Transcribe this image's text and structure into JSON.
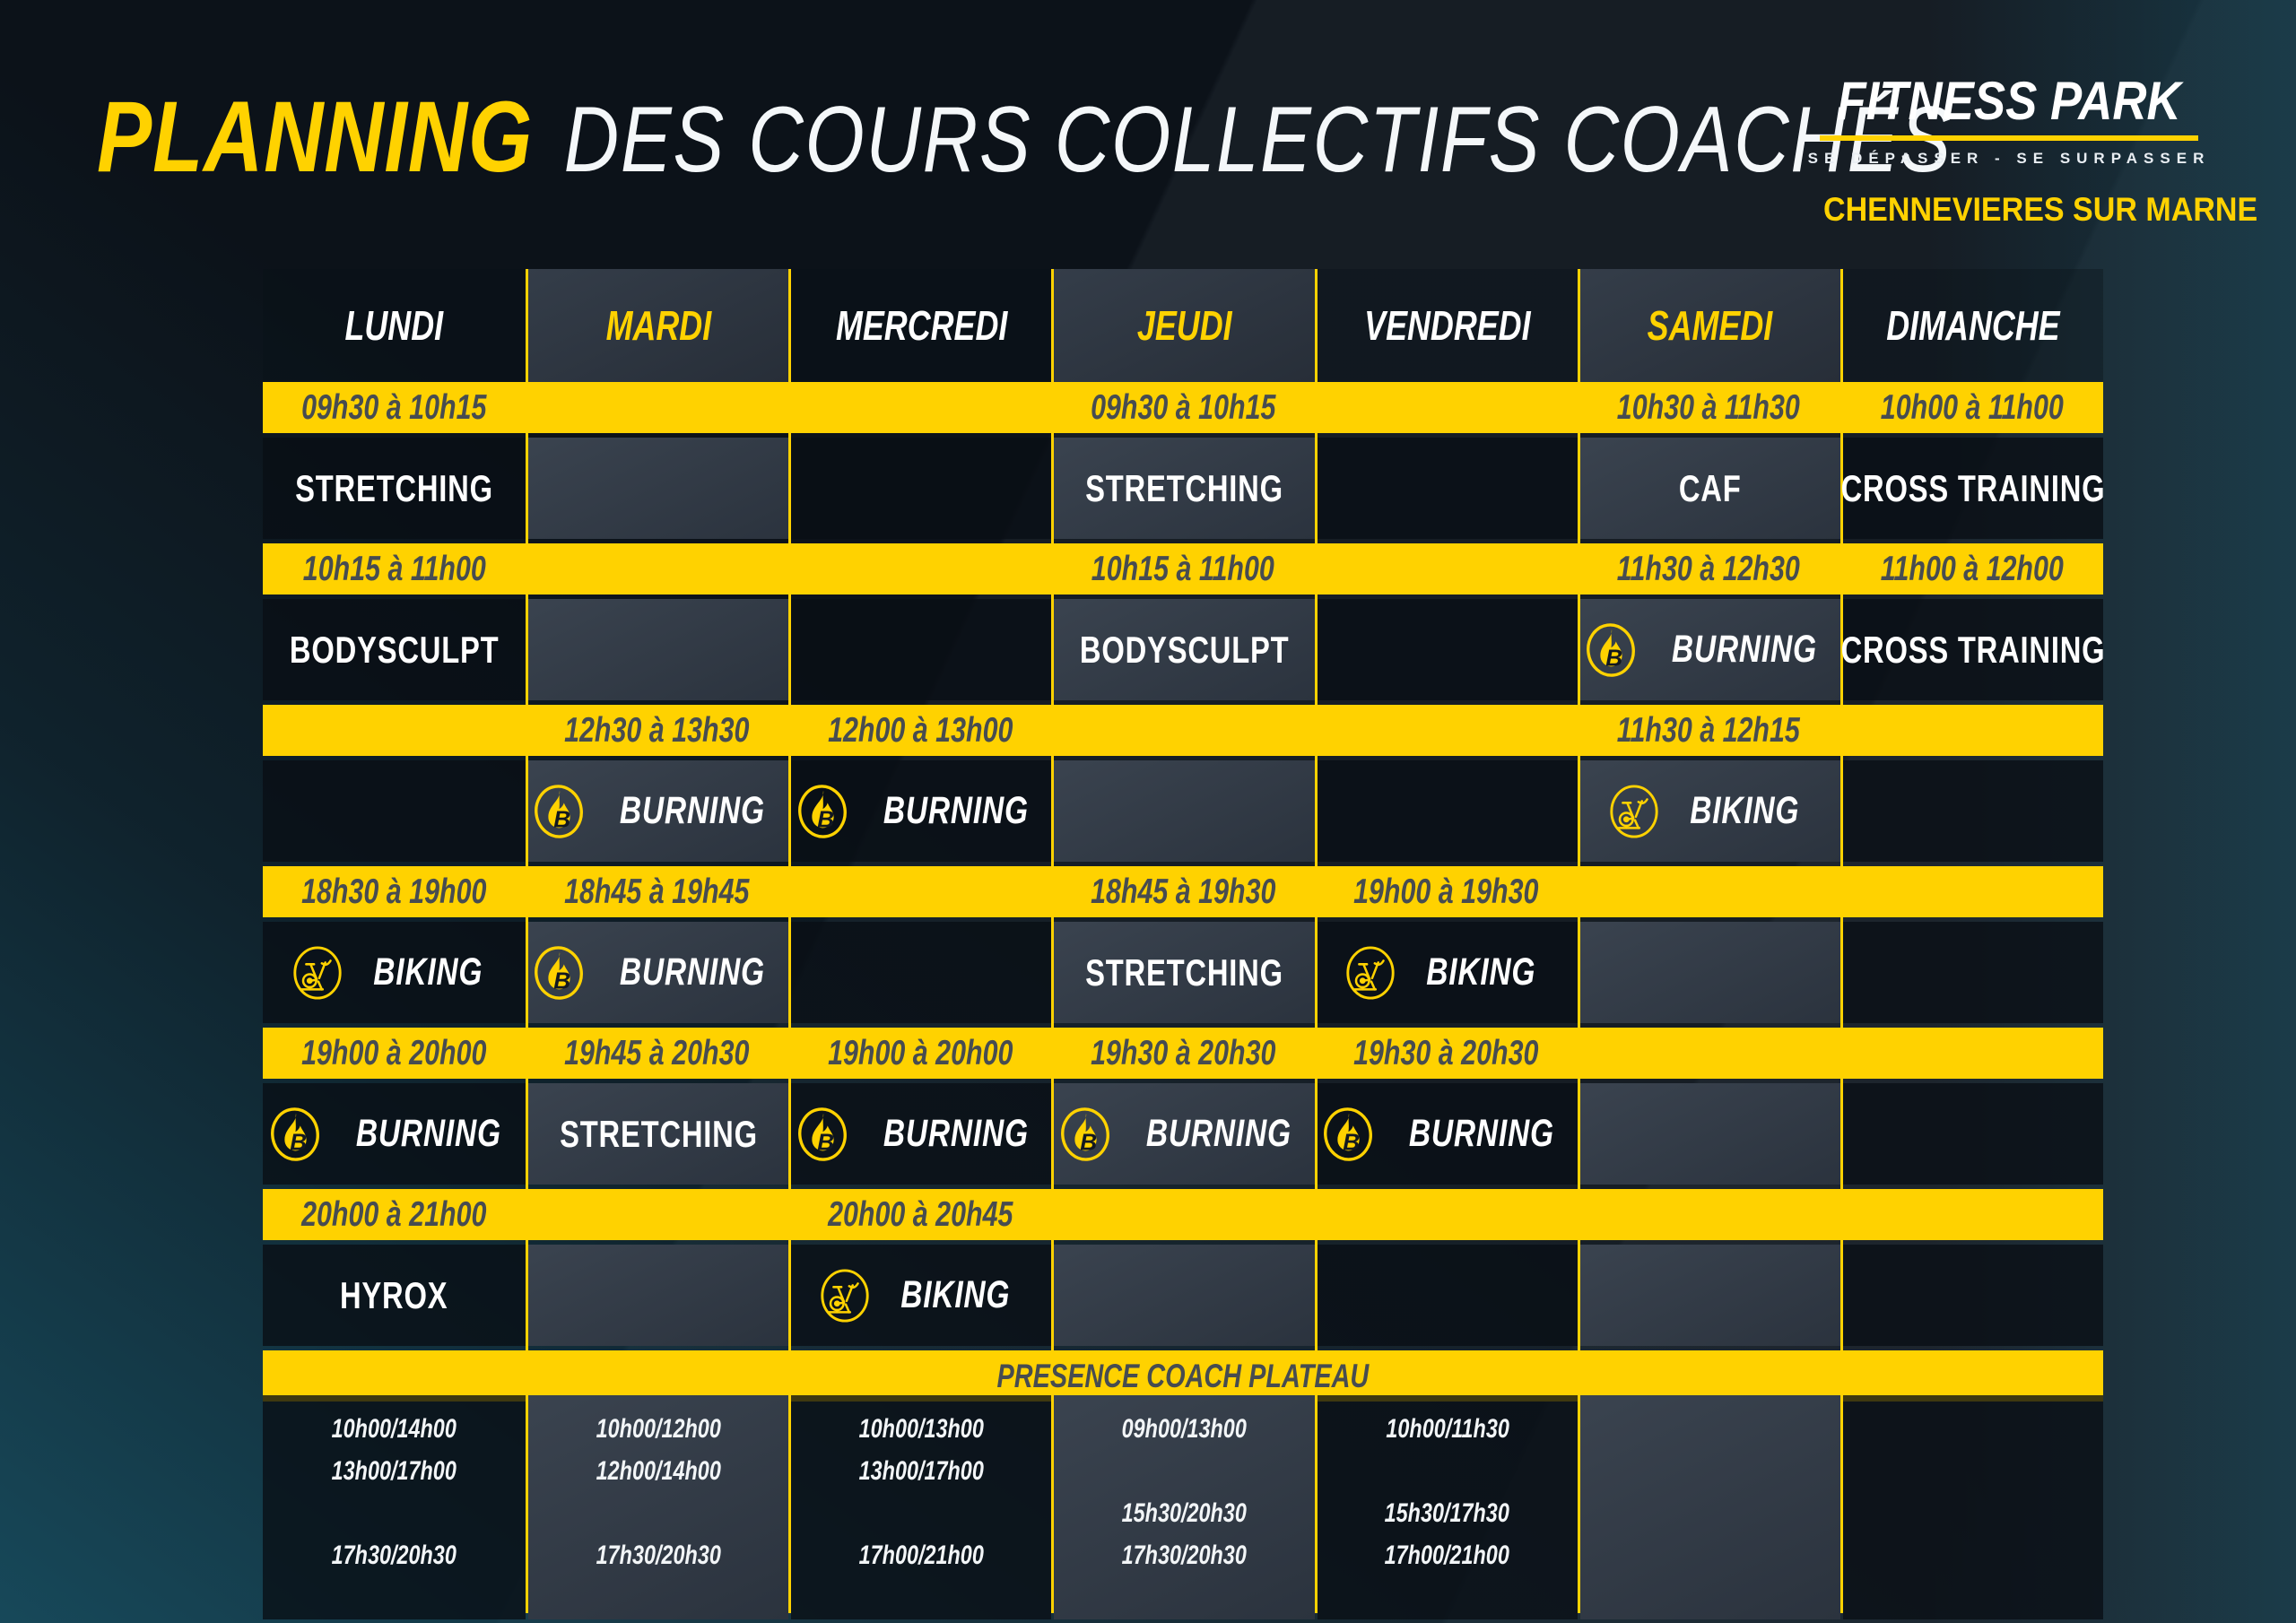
{
  "header": {
    "title_accent": "PLANNING",
    "title_rest": "DES COURS COLLECTIFS COACHÉS",
    "brand": {
      "name": "FITNESS PARK",
      "tagline": "SE DÉPASSER - SE SURPASSER",
      "location": "CHENNEVIERES SUR MARNE"
    }
  },
  "colors": {
    "accent": "#ffd200",
    "background": "#0c1219",
    "time_text": "#474c50",
    "panel_light": "#323b46",
    "panel_dark": "#0d131c"
  },
  "schedule": {
    "days": [
      {
        "label": "LUNDI",
        "accent": false
      },
      {
        "label": "MARDI",
        "accent": true
      },
      {
        "label": "MERCREDI",
        "accent": false
      },
      {
        "label": "JEUDI",
        "accent": true
      },
      {
        "label": "VENDREDI",
        "accent": false
      },
      {
        "label": "SAMEDI",
        "accent": true
      },
      {
        "label": "DIMANCHE",
        "accent": false
      }
    ],
    "rows": [
      {
        "type": "times",
        "cells": [
          "09h30 à 10h15",
          "",
          "",
          "09h30 à 10h15",
          "",
          "10h30 à 11h30",
          "10h00 à 11h00"
        ]
      },
      {
        "type": "classes",
        "cells": [
          {
            "label": "STRETCHING"
          },
          {},
          {},
          {
            "label": "STRETCHING"
          },
          {},
          {
            "label": "CAF"
          },
          {
            "label": "CROSS TRAINING"
          }
        ]
      },
      {
        "type": "times",
        "cells": [
          "10h15 à 11h00",
          "",
          "",
          "10h15 à 11h00",
          "",
          "11h30 à 12h30",
          "11h00 à 12h00"
        ]
      },
      {
        "type": "classes",
        "cells": [
          {
            "label": "BODYSCULPT"
          },
          {},
          {},
          {
            "label": "BODYSCULPT"
          },
          {},
          {
            "label": "BURNING",
            "icon": "burning"
          },
          {
            "label": "CROSS TRAINING"
          }
        ]
      },
      {
        "type": "times",
        "cells": [
          "",
          "12h30 à 13h30",
          "12h00 à 13h00",
          "",
          "",
          "11h30 à 12h15",
          ""
        ]
      },
      {
        "type": "classes",
        "cells": [
          {},
          {
            "label": "BURNING",
            "icon": "burning"
          },
          {
            "label": "BURNING",
            "icon": "burning"
          },
          {},
          {},
          {
            "label": "BIKING",
            "icon": "biking"
          },
          {}
        ]
      },
      {
        "type": "times",
        "cells": [
          "18h30 à 19h00",
          "18h45 à 19h45",
          "",
          "18h45 à 19h30",
          "19h00 à 19h30",
          "",
          ""
        ]
      },
      {
        "type": "classes",
        "cells": [
          {
            "label": "BIKING",
            "icon": "biking"
          },
          {
            "label": "BURNING",
            "icon": "burning"
          },
          {},
          {
            "label": "STRETCHING"
          },
          {
            "label": "BIKING",
            "icon": "biking"
          },
          {},
          {}
        ]
      },
      {
        "type": "times",
        "cells": [
          "19h00 à 20h00",
          "19h45 à 20h30",
          "19h00 à 20h00",
          "19h30 à 20h30",
          "19h30 à 20h30",
          "",
          ""
        ]
      },
      {
        "type": "classes",
        "cells": [
          {
            "label": "BURNING",
            "icon": "burning"
          },
          {
            "label": "STRETCHING"
          },
          {
            "label": "BURNING",
            "icon": "burning"
          },
          {
            "label": "BURNING",
            "icon": "burning"
          },
          {
            "label": "BURNING",
            "icon": "burning"
          },
          {},
          {}
        ]
      },
      {
        "type": "times",
        "cells": [
          "20h00 à 21h00",
          "",
          "20h00 à 20h45",
          "",
          "",
          "",
          ""
        ]
      },
      {
        "type": "classes",
        "cells": [
          {
            "label": "HYROX"
          },
          {},
          {
            "label": "BIKING",
            "icon": "biking"
          },
          {},
          {},
          {},
          {}
        ]
      }
    ],
    "footer": {
      "title": "PRESENCE COACH PLATEAU",
      "slots": [
        [
          "10h00/14h00",
          "13h00/17h00",
          "",
          "17h30/20h30"
        ],
        [
          "10h00/12h00",
          "12h00/14h00",
          "",
          "17h30/20h30"
        ],
        [
          "10h00/13h00",
          "13h00/17h00",
          "",
          "17h00/21h00"
        ],
        [
          "09h00/13h00",
          "",
          "15h30/20h30",
          "17h30/20h30"
        ],
        [
          "10h00/11h30",
          "",
          "15h30/17h30",
          "17h00/21h00"
        ],
        [
          "",
          "",
          "",
          ""
        ],
        [
          "",
          "",
          "",
          ""
        ]
      ]
    }
  }
}
